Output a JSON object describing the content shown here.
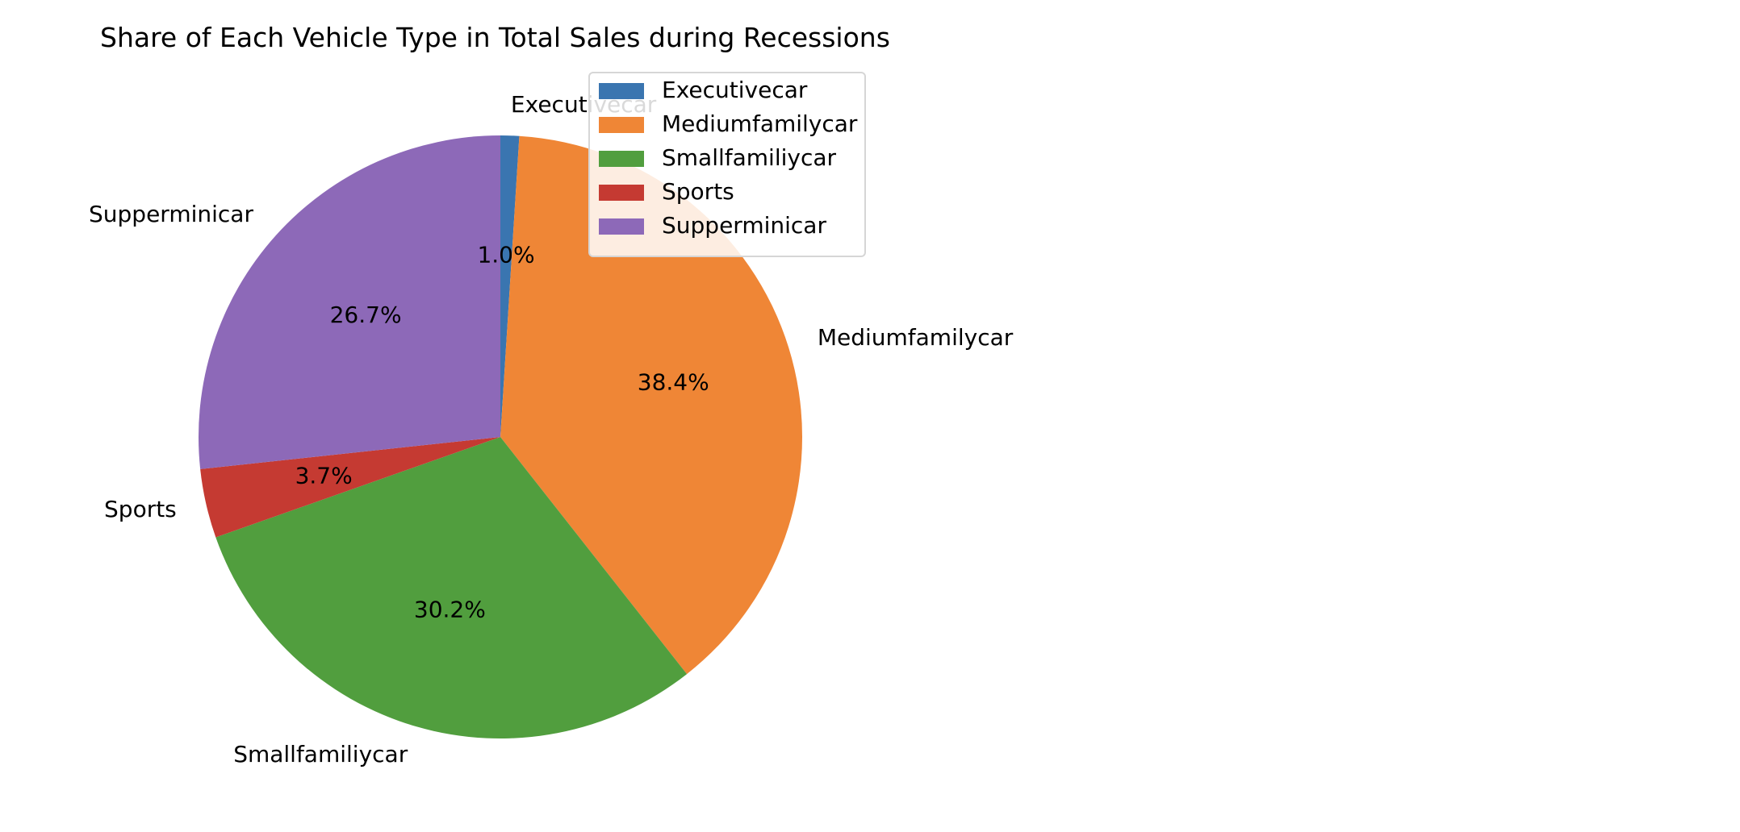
{
  "chart_data": {
    "type": "pie",
    "title": "Share of Each Vehicle Type in Total Sales during Recessions",
    "labels": [
      "Executivecar",
      "Mediumfamilycar",
      "Smallfamiliycar",
      "Sports",
      "Supperminicar"
    ],
    "values": [
      1.0,
      38.4,
      30.2,
      3.7,
      26.7
    ],
    "percent_labels": [
      "1.0%",
      "38.4%",
      "30.2%",
      "3.7%",
      "26.7%"
    ],
    "colors": [
      "#3a75b0",
      "#ef8636",
      "#519e3e",
      "#c53a32",
      "#8d69b8"
    ],
    "start_angle_deg": 90,
    "counterclockwise": false,
    "legend": {
      "placement": "upper-right",
      "entries": [
        "Executivecar",
        "Mediumfamilycar",
        "Smallfamiliycar",
        "Sports",
        "Supperminicar"
      ]
    }
  }
}
